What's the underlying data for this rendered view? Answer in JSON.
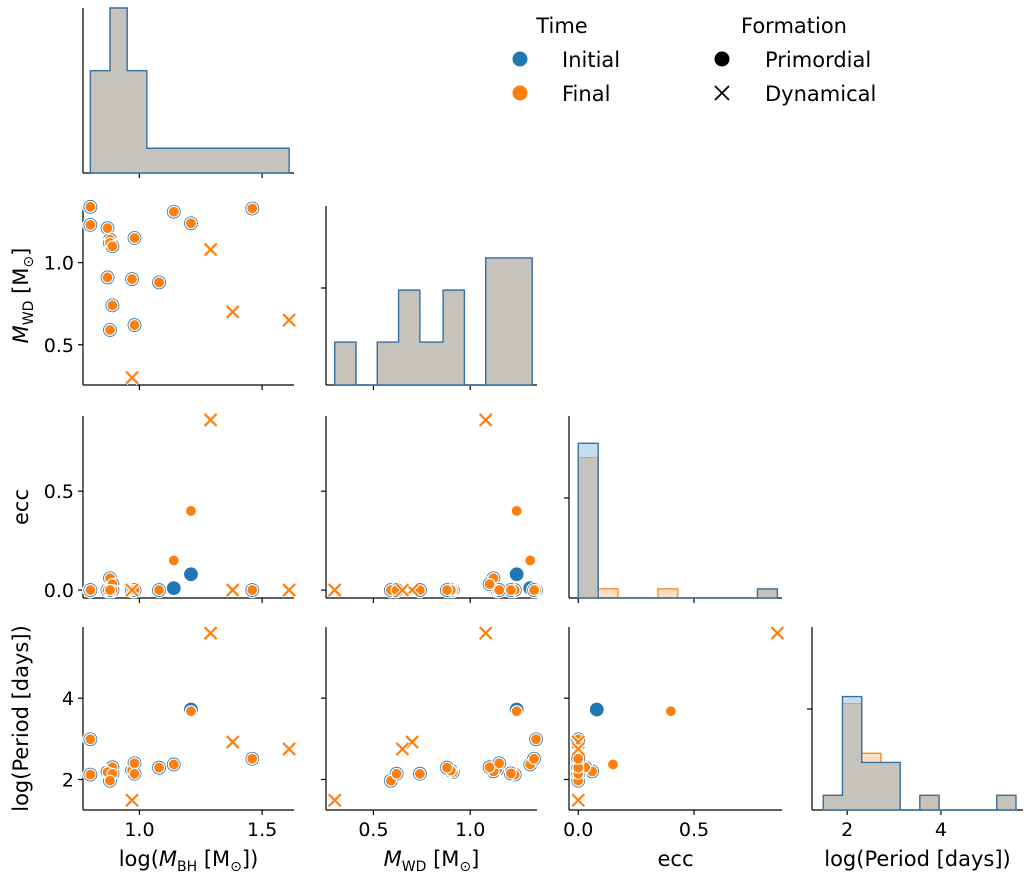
{
  "chart_data": {
    "type": "pairplot",
    "colors": {
      "initial": "#1f77b4",
      "final": "#ff7f0e",
      "overlap_fill": "#c6c3bd",
      "overlap_edge": "#3572a6"
    },
    "variables": [
      {
        "key": "logMBH",
        "label_main": "log(",
        "label_sym": "M",
        "label_sub": "BH",
        "label_unit": " [M",
        "label_sun": "⊙",
        "label_end": "])",
        "ticks": [
          1.0,
          1.5
        ],
        "tick_labels": [
          "1.0",
          "1.5"
        ],
        "range": [
          0.77,
          1.63
        ]
      },
      {
        "key": "MWD",
        "label_sym": "M",
        "label_sub": "WD",
        "label_unit": " [M",
        "label_sun": "⊙",
        "label_end": "]",
        "ticks": [
          0.5,
          1.0
        ],
        "tick_labels": [
          "0.5",
          "1.0"
        ],
        "range": [
          0.255,
          1.345
        ]
      },
      {
        "key": "ecc",
        "label_main": "ecc",
        "ticks": [
          0.0,
          0.5
        ],
        "tick_labels": [
          "0.0",
          "0.5"
        ],
        "range": [
          -0.04,
          0.88
        ]
      },
      {
        "key": "logP",
        "label_main": "log(Period [days])",
        "ticks": [
          2,
          4
        ],
        "tick_labels": [
          "2",
          "4"
        ],
        "range": [
          1.25,
          5.75
        ]
      }
    ],
    "points": [
      {
        "x": [
          0.8,
          1.34
        ],
        "ecc": [
          0.0,
          0.0
        ],
        "logP": [
          2.99,
          2.99
        ],
        "form": "primordial"
      },
      {
        "x": [
          0.8,
          1.23
        ],
        "ecc": [
          0.0,
          0.0
        ],
        "logP": [
          2.12,
          2.12
        ],
        "form": "primordial"
      },
      {
        "x": [
          0.87,
          1.21
        ],
        "ecc": [
          0.0,
          0.0
        ],
        "logP": [
          2.15,
          2.15
        ],
        "form": "primordial"
      },
      {
        "x": [
          0.88,
          1.14
        ],
        "ecc": [
          0.0,
          0.0
        ],
        "logP": [
          2.25,
          2.25
        ],
        "form": "primordial"
      },
      {
        "x": [
          0.88,
          1.12
        ],
        "ecc": [
          0.06,
          0.06
        ],
        "logP": [
          2.2,
          2.2
        ],
        "form": "primordial"
      },
      {
        "x": [
          0.89,
          1.1
        ],
        "ecc": [
          0.03,
          0.03
        ],
        "logP": [
          2.3,
          2.3
        ],
        "form": "primordial"
      },
      {
        "x": [
          0.87,
          0.91
        ],
        "ecc": [
          0.0,
          0.0
        ],
        "logP": [
          2.18,
          2.18
        ],
        "form": "primordial"
      },
      {
        "x": [
          0.89,
          0.74
        ],
        "ecc": [
          0.0,
          0.0
        ],
        "logP": [
          2.14,
          2.14
        ],
        "form": "primordial"
      },
      {
        "x": [
          0.88,
          0.59
        ],
        "ecc": [
          0.0,
          0.0
        ],
        "logP": [
          1.97,
          1.97
        ],
        "form": "primordial"
      },
      {
        "x": [
          0.97,
          0.9
        ],
        "ecc": [
          0.0,
          0.0
        ],
        "logP": [
          2.22,
          2.22
        ],
        "form": "primordial"
      },
      {
        "x": [
          0.98,
          1.15
        ],
        "ecc": [
          0.0,
          0.0
        ],
        "logP": [
          2.4,
          2.4
        ],
        "form": "primordial"
      },
      {
        "x": [
          0.98,
          0.62
        ],
        "ecc": [
          0.0,
          0.0
        ],
        "logP": [
          2.14,
          2.14
        ],
        "form": "primordial"
      },
      {
        "x": [
          1.08,
          0.88
        ],
        "ecc": [
          0.0,
          0.0
        ],
        "logP": [
          2.29,
          2.29
        ],
        "form": "primordial"
      },
      {
        "x": [
          1.14,
          1.31
        ],
        "ecc": [
          0.01,
          0.15
        ],
        "logP": [
          2.37,
          2.37
        ],
        "form": "primordial"
      },
      {
        "x": [
          1.21,
          1.24
        ],
        "ecc": [
          0.08,
          0.4
        ],
        "logP": [
          3.72,
          3.68
        ],
        "form": "primordial"
      },
      {
        "x": [
          1.46,
          1.33
        ],
        "ecc": [
          0.0,
          0.0
        ],
        "logP": [
          2.51,
          2.51
        ],
        "form": "primordial"
      },
      {
        "x": [
          0.97,
          0.3
        ],
        "ecc": [
          0.0,
          0.0
        ],
        "logP": [
          1.49,
          1.49
        ],
        "form": "dynamical"
      },
      {
        "x": [
          1.29,
          1.08
        ],
        "ecc": [
          0.86,
          0.86
        ],
        "logP": [
          5.6,
          5.6
        ],
        "form": "dynamical"
      },
      {
        "x": [
          1.38,
          0.7
        ],
        "ecc": [
          0.0,
          0.0
        ],
        "logP": [
          2.92,
          2.92
        ],
        "form": "dynamical"
      },
      {
        "x": [
          1.61,
          0.65
        ],
        "ecc": [
          0.0,
          0.0
        ],
        "logP": [
          2.75,
          2.75
        ],
        "form": "dynamical"
      }
    ],
    "histograms": {
      "logMBH": {
        "edges": [
          0.8,
          0.88,
          0.95,
          1.03,
          1.61
        ],
        "initial": [
          0.62,
          1.0,
          0.62,
          0.15
        ],
        "final": [
          0.62,
          1.0,
          0.62,
          0.15
        ]
      },
      "MWD": {
        "edges": [
          0.3,
          0.41,
          0.52,
          0.63,
          0.74,
          0.86,
          0.97,
          1.08,
          1.32
        ],
        "initial": [
          0.24,
          0.0,
          0.24,
          0.53,
          0.24,
          0.53,
          0.0,
          0.71
        ],
        "final": [
          0.24,
          0.0,
          0.24,
          0.53,
          0.24,
          0.53,
          0.0,
          0.71
        ]
      },
      "ecc": {
        "edges": [
          0.0,
          0.086,
          0.172,
          0.258,
          0.344,
          0.43,
          0.516,
          0.602,
          0.688,
          0.774,
          0.86
        ],
        "initial": [
          0.85,
          0.0,
          0.0,
          0.0,
          0.0,
          0.0,
          0.0,
          0.0,
          0.0,
          0.05
        ],
        "final": [
          0.77,
          0.05,
          0.0,
          0.0,
          0.05,
          0.0,
          0.0,
          0.0,
          0.0,
          0.05
        ]
      },
      "logP": {
        "edges": [
          1.49,
          1.9,
          2.31,
          2.72,
          3.13,
          3.55,
          3.96,
          4.37,
          4.78,
          5.19,
          5.6
        ],
        "initial": [
          0.08,
          0.62,
          0.26,
          0.26,
          0.0,
          0.08,
          0.0,
          0.0,
          0.0,
          0.08
        ],
        "final": [
          0.08,
          0.58,
          0.31,
          0.26,
          0.0,
          0.08,
          0.0,
          0.0,
          0.0,
          0.08
        ]
      }
    },
    "legend": {
      "time_title": "Time",
      "time_items": [
        {
          "label": "Initial",
          "color": "#1f77b4"
        },
        {
          "label": "Final",
          "color": "#ff7f0e"
        }
      ],
      "formation_title": "Formation",
      "formation_items": [
        {
          "label": "Primordial",
          "marker": "circle"
        },
        {
          "label": "Dynamical",
          "marker": "x"
        }
      ],
      "placement": "top-right"
    }
  }
}
